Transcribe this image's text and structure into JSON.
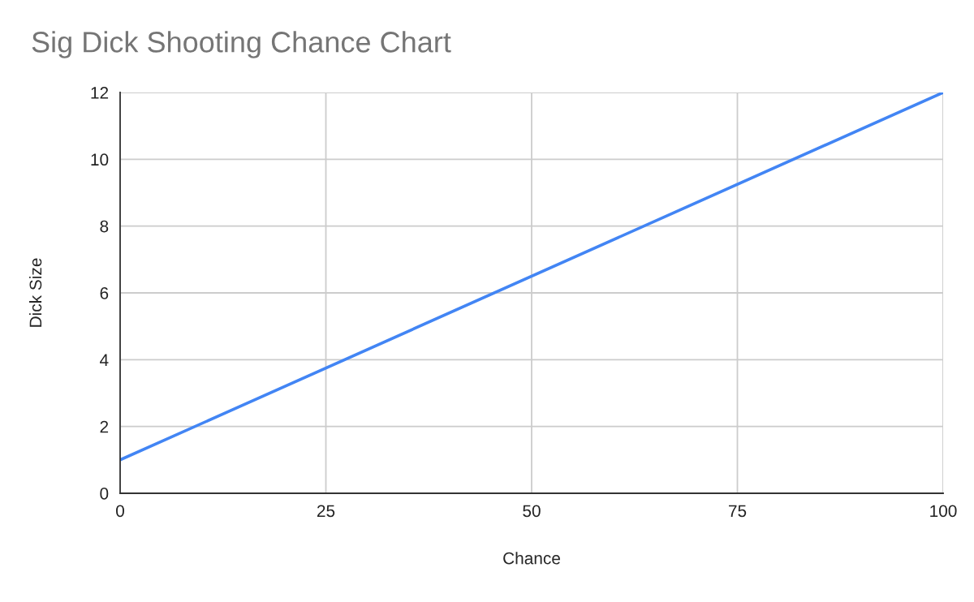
{
  "chart_data": {
    "type": "line",
    "title": "Sig Dick Shooting Chance Chart",
    "xlabel": "Chance",
    "ylabel": "Dick Size",
    "x": [
      0,
      100
    ],
    "series": [
      {
        "color": "#4285f4",
        "values": [
          1,
          12
        ]
      }
    ],
    "xlim": [
      0,
      100
    ],
    "xticks": [
      0,
      25,
      50,
      75,
      100
    ],
    "ylim": [
      0,
      12
    ],
    "yticks": [
      0,
      2,
      4,
      6,
      8,
      10,
      12
    ],
    "grid": true,
    "legend": false,
    "marker": "none",
    "line_style": "solid"
  }
}
